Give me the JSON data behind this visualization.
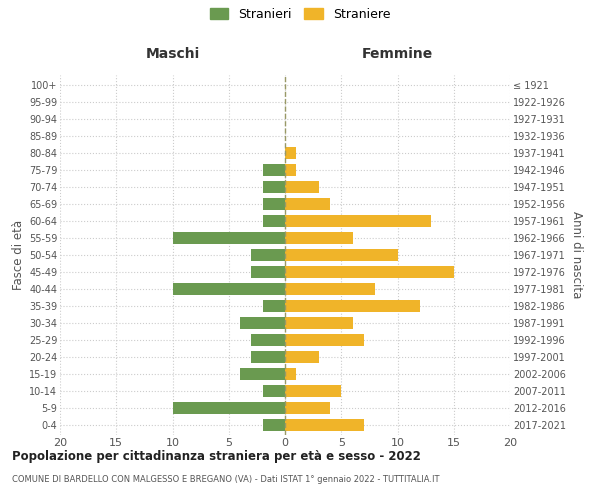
{
  "age_groups_bottom_to_top": [
    "0-4",
    "5-9",
    "10-14",
    "15-19",
    "20-24",
    "25-29",
    "30-34",
    "35-39",
    "40-44",
    "45-49",
    "50-54",
    "55-59",
    "60-64",
    "65-69",
    "70-74",
    "75-79",
    "80-84",
    "85-89",
    "90-94",
    "95-99",
    "100+"
  ],
  "birth_years_bottom_to_top": [
    "2017-2021",
    "2012-2016",
    "2007-2011",
    "2002-2006",
    "1997-2001",
    "1992-1996",
    "1987-1991",
    "1982-1986",
    "1977-1981",
    "1972-1976",
    "1967-1971",
    "1962-1966",
    "1957-1961",
    "1952-1956",
    "1947-1951",
    "1942-1946",
    "1937-1941",
    "1932-1936",
    "1927-1931",
    "1922-1926",
    "≤ 1921"
  ],
  "maschi_bottom_to_top": [
    2,
    10,
    2,
    4,
    3,
    3,
    4,
    2,
    10,
    3,
    3,
    10,
    2,
    2,
    2,
    2,
    0,
    0,
    0,
    0,
    0
  ],
  "femmine_bottom_to_top": [
    7,
    4,
    5,
    1,
    3,
    7,
    6,
    12,
    8,
    15,
    10,
    6,
    13,
    4,
    3,
    1,
    1,
    0,
    0,
    0,
    0
  ],
  "color_maschi": "#6a9a50",
  "color_femmine": "#f0b429",
  "title_main": "Popolazione per cittadinanza straniera per età e sesso - 2022",
  "title_sub": "COMUNE DI BARDELLO CON MALGESSO E BREGANO (VA) - Dati ISTAT 1° gennaio 2022 - TUTTITALIA.IT",
  "xlabel_left": "Maschi",
  "xlabel_right": "Femmine",
  "ylabel_left": "Fasce di età",
  "ylabel_right": "Anni di nascita",
  "legend_maschi": "Stranieri",
  "legend_femmine": "Straniere",
  "xlim": 20,
  "background_color": "#ffffff",
  "grid_color": "#cccccc"
}
